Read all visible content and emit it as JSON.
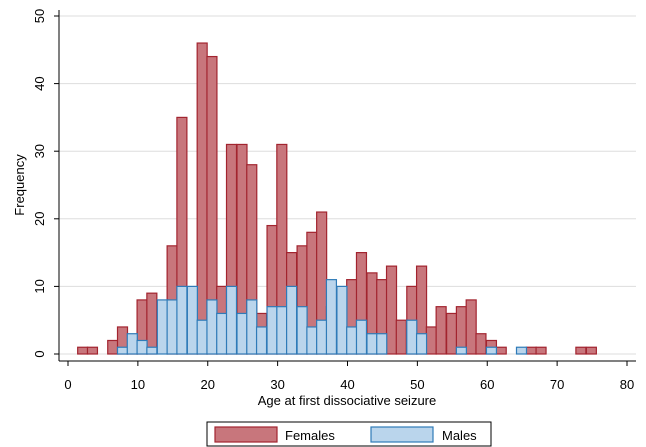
{
  "chart_data": {
    "type": "histogram",
    "xlabel": "Age at first dissociative seizure",
    "ylabel": "Frequency",
    "xlim": [
      0,
      81
    ],
    "ylim": [
      0,
      50
    ],
    "xticks": [
      0,
      10,
      20,
      30,
      40,
      50,
      60,
      70,
      80
    ],
    "yticks": [
      0,
      10,
      20,
      30,
      40,
      50
    ],
    "bin_width": 1.43,
    "grid": "horizontal",
    "legend_position": "bottom",
    "series": [
      {
        "name": "Females",
        "fill": "#c8767c",
        "stroke": "#a2242f",
        "bins": [
          [
            2.1,
            1
          ],
          [
            3.5,
            1
          ],
          [
            6.4,
            2
          ],
          [
            7.8,
            4
          ],
          [
            9.2,
            1
          ],
          [
            10.6,
            8
          ],
          [
            12.0,
            9
          ],
          [
            14.9,
            16
          ],
          [
            16.3,
            35
          ],
          [
            17.8,
            8
          ],
          [
            19.2,
            46
          ],
          [
            20.6,
            44
          ],
          [
            22.0,
            10
          ],
          [
            23.4,
            31
          ],
          [
            24.9,
            31
          ],
          [
            26.3,
            28
          ],
          [
            27.7,
            6
          ],
          [
            29.2,
            19
          ],
          [
            30.6,
            31
          ],
          [
            32.0,
            15
          ],
          [
            33.5,
            16
          ],
          [
            34.9,
            18
          ],
          [
            36.3,
            21
          ],
          [
            37.7,
            7
          ],
          [
            39.2,
            8
          ],
          [
            40.6,
            11
          ],
          [
            42.0,
            15
          ],
          [
            43.5,
            12
          ],
          [
            44.9,
            11
          ],
          [
            46.3,
            13
          ],
          [
            47.7,
            5
          ],
          [
            49.2,
            10
          ],
          [
            50.6,
            13
          ],
          [
            52.0,
            4
          ],
          [
            53.4,
            7
          ],
          [
            54.9,
            6
          ],
          [
            56.3,
            7
          ],
          [
            57.7,
            8
          ],
          [
            59.1,
            3
          ],
          [
            60.6,
            2
          ],
          [
            62.0,
            1
          ],
          [
            66.3,
            1
          ],
          [
            67.7,
            1
          ],
          [
            73.4,
            1
          ],
          [
            74.9,
            1
          ]
        ]
      },
      {
        "name": "Males",
        "fill": "#bad5ec",
        "stroke": "#2f7bb8",
        "bins": [
          [
            7.8,
            1
          ],
          [
            9.2,
            3
          ],
          [
            10.6,
            2
          ],
          [
            12.0,
            1
          ],
          [
            13.5,
            8
          ],
          [
            14.9,
            8
          ],
          [
            16.3,
            10
          ],
          [
            17.8,
            10
          ],
          [
            19.2,
            5
          ],
          [
            20.6,
            8
          ],
          [
            22.0,
            6
          ],
          [
            23.4,
            10
          ],
          [
            24.9,
            6
          ],
          [
            26.3,
            8
          ],
          [
            27.7,
            4
          ],
          [
            29.2,
            7
          ],
          [
            30.6,
            7
          ],
          [
            32.0,
            10
          ],
          [
            33.5,
            7
          ],
          [
            34.9,
            4
          ],
          [
            36.3,
            5
          ],
          [
            37.7,
            11
          ],
          [
            39.2,
            10
          ],
          [
            40.6,
            4
          ],
          [
            42.0,
            5
          ],
          [
            43.5,
            3
          ],
          [
            44.9,
            3
          ],
          [
            49.2,
            5
          ],
          [
            50.6,
            3
          ],
          [
            56.3,
            1
          ],
          [
            60.6,
            1
          ],
          [
            64.9,
            1
          ]
        ]
      }
    ]
  }
}
